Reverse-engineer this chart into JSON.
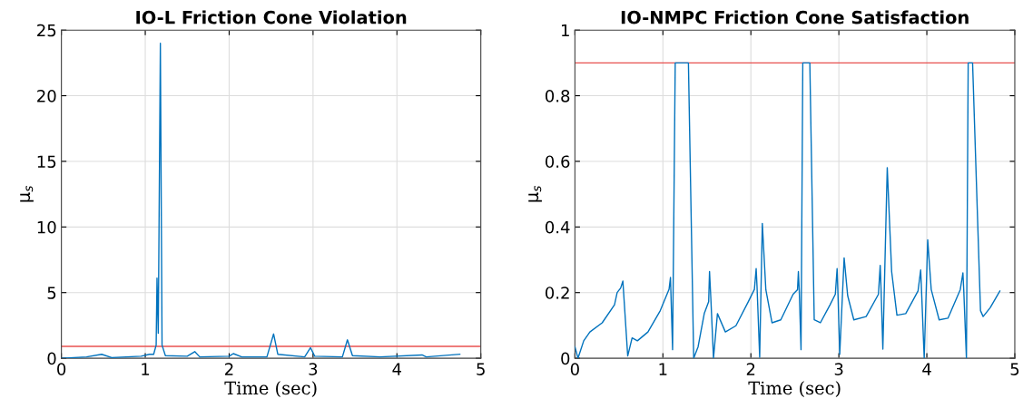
{
  "chart_data": [
    {
      "type": "line",
      "title": "IO-L Friction Cone Violation",
      "xlabel": "Time (sec)",
      "ylabel": "μ$_{s}$",
      "xlim": [
        0,
        5
      ],
      "xticks": [
        0,
        1,
        2,
        3,
        4,
        5
      ],
      "ylim": [
        0,
        25
      ],
      "yticks": [
        0,
        5,
        10,
        15,
        20,
        25
      ],
      "grid": true,
      "series": [
        {
          "color": "#0072bd",
          "x": [
            0,
            0.3,
            0.48,
            0.6,
            0.95,
            1.05,
            1.1,
            1.13,
            1.14,
            1.155,
            1.18,
            1.2,
            1.24,
            1.5,
            1.59,
            1.65,
            2.0,
            2.05,
            2.15,
            2.45,
            2.53,
            2.58,
            2.9,
            2.97,
            3.02,
            3.35,
            3.41,
            3.47,
            3.8,
            4.3,
            4.35,
            4.75
          ],
          "values": [
            0,
            0.1,
            0.3,
            0.05,
            0.15,
            0.3,
            0.3,
            1.0,
            6.1,
            1.9,
            24,
            1.0,
            0.2,
            0.15,
            0.5,
            0.1,
            0.15,
            0.35,
            0.1,
            0.1,
            1.85,
            0.3,
            0.1,
            0.8,
            0.15,
            0.1,
            1.4,
            0.2,
            0.1,
            0.25,
            0.1,
            0.3
          ]
        }
      ],
      "ref_lines": [
        {
          "axis": "y",
          "value": 0.9,
          "color": "#e8504f"
        }
      ]
    },
    {
      "type": "line",
      "title": "IO-NMPC Friction Cone Satisfaction",
      "xlabel": "Time (sec)",
      "ylabel": "μ$_{s}$",
      "xlim": [
        0,
        5
      ],
      "xticks": [
        0,
        1,
        2,
        3,
        4,
        5
      ],
      "ylim": [
        0,
        1
      ],
      "yticks": [
        0,
        0.2,
        0.4,
        0.6,
        0.8,
        1
      ],
      "grid": true,
      "series": [
        {
          "color": "#0072bd",
          "x": [
            0,
            0.035,
            0.1,
            0.17,
            0.31,
            0.45,
            0.48,
            0.52,
            0.545,
            0.6,
            0.65,
            0.71,
            0.83,
            0.97,
            1.07,
            1.086,
            1.11,
            1.14,
            1.29,
            1.35,
            1.4,
            1.47,
            1.52,
            1.53,
            1.545,
            1.575,
            1.62,
            1.71,
            1.83,
            1.97,
            2.04,
            2.06,
            2.07,
            2.1,
            2.13,
            2.17,
            2.24,
            2.34,
            2.48,
            2.53,
            2.54,
            2.55,
            2.57,
            2.59,
            2.67,
            2.72,
            2.79,
            2.9,
            2.96,
            2.98,
            2.99,
            3.01,
            3.06,
            3.1,
            3.17,
            3.31,
            3.45,
            3.47,
            3.48,
            3.5,
            3.55,
            3.6,
            3.66,
            3.76,
            3.9,
            3.93,
            3.94,
            3.97,
            4.01,
            4.05,
            4.14,
            4.24,
            4.38,
            4.41,
            4.42,
            4.45,
            4.47,
            4.52,
            4.61,
            4.64,
            4.72,
            4.83
          ],
          "values": [
            0.035,
            0,
            0.053,
            0.08,
            0.108,
            0.163,
            0.2,
            0.214,
            0.235,
            0.007,
            0.062,
            0.053,
            0.08,
            0.145,
            0.21,
            0.246,
            0.026,
            0.9,
            0.9,
            0,
            0.035,
            0.136,
            0.172,
            0.264,
            0.182,
            0,
            0.136,
            0.08,
            0.099,
            0.172,
            0.21,
            0.273,
            0.218,
            0.003,
            0.411,
            0.209,
            0.108,
            0.117,
            0.195,
            0.209,
            0.264,
            0.205,
            0.026,
            0.9,
            0.9,
            0.117,
            0.108,
            0.163,
            0.195,
            0.273,
            0.195,
            0.012,
            0.306,
            0.191,
            0.117,
            0.127,
            0.195,
            0.283,
            0.209,
            0.028,
            0.581,
            0.264,
            0.131,
            0.136,
            0.205,
            0.269,
            0.205,
            0,
            0.361,
            0.209,
            0.117,
            0.122,
            0.209,
            0.26,
            0.205,
            0,
            0.9,
            0.9,
            0.145,
            0.127,
            0.154,
            0.205
          ]
        }
      ],
      "ref_lines": [
        {
          "axis": "y",
          "value": 0.9,
          "color": "#e8504f"
        }
      ]
    }
  ]
}
